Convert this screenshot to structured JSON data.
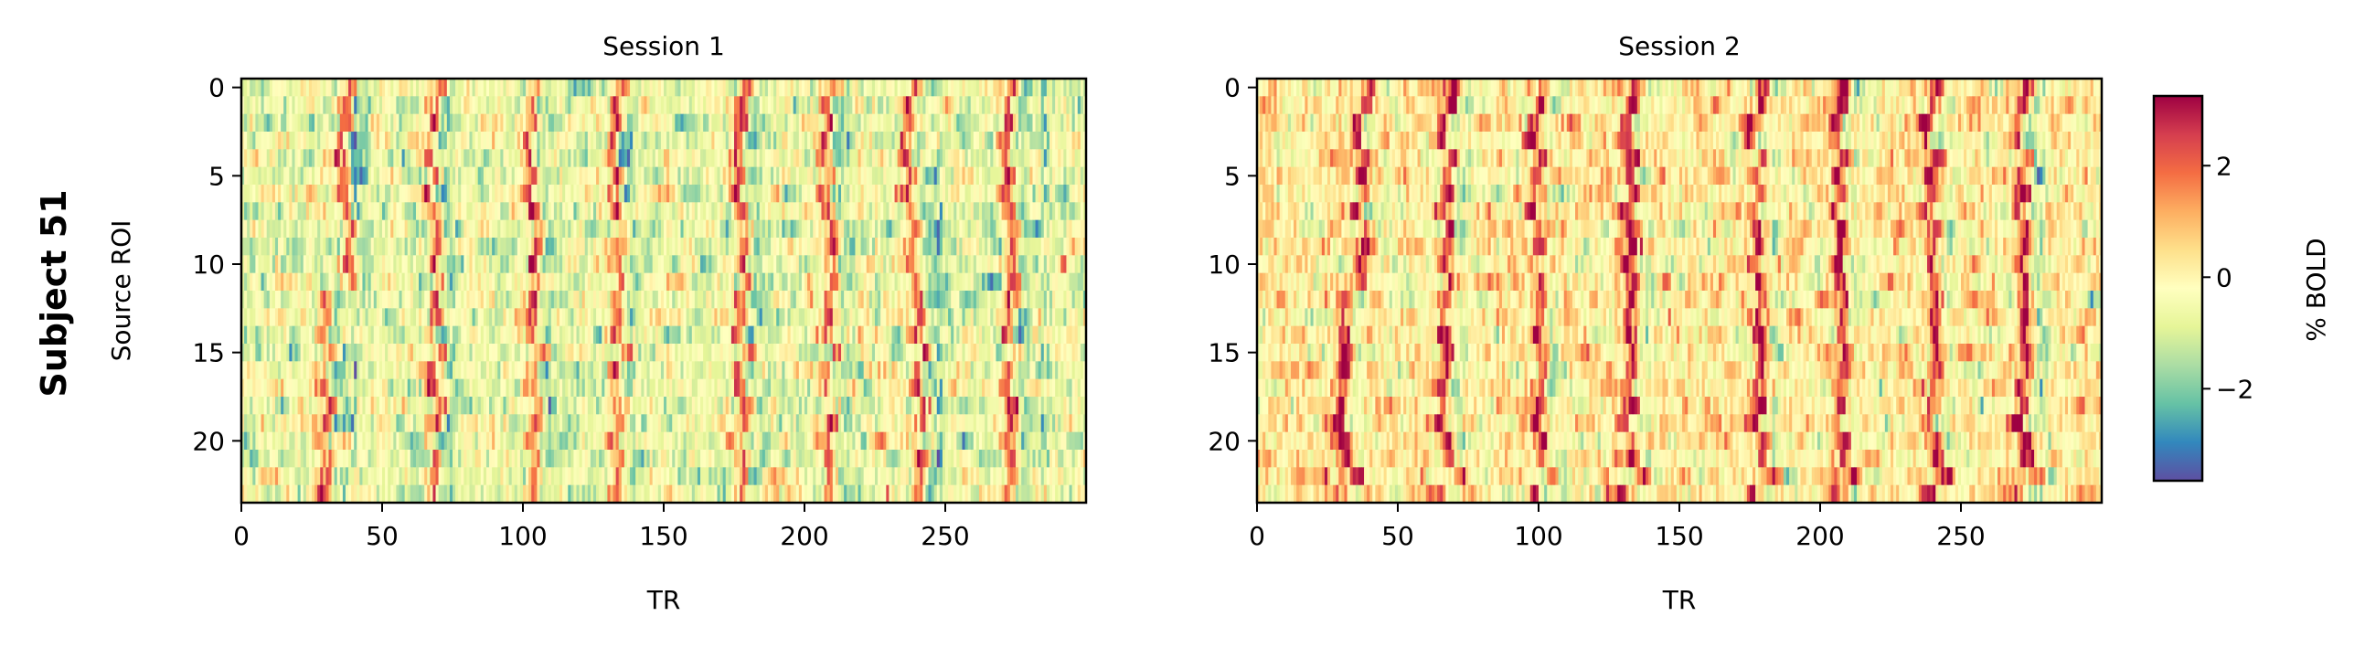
{
  "figure": {
    "row_label": "Subject 51"
  },
  "chart_data": [
    {
      "type": "heatmap",
      "title": "Session 1",
      "xlabel": "TR",
      "ylabel": "Source ROI",
      "n_rows": 24,
      "n_cols": 300,
      "xlim": [
        0,
        299
      ],
      "ylim": [
        23,
        0
      ],
      "xticks": [
        "0",
        "50",
        "100",
        "150",
        "200",
        "250"
      ],
      "yticks": [
        "0",
        "5",
        "10",
        "15",
        "20"
      ],
      "colormap": "Spectral_r",
      "baseline_level": -0.6,
      "response_peaks_tr_rows_0_11": [
        37,
        68,
        103,
        133,
        177,
        208,
        237,
        272
      ],
      "response_peaks_tr_rows_12_23": [
        29,
        68,
        103,
        133,
        177,
        208,
        240,
        272
      ],
      "notable_negative_tr": [
        40,
        247,
        285
      ]
    },
    {
      "type": "heatmap",
      "title": "Session 2",
      "xlabel": "TR",
      "ylabel": "",
      "n_rows": 24,
      "n_cols": 300,
      "xlim": [
        0,
        299
      ],
      "ylim": [
        23,
        0
      ],
      "xticks": [
        "0",
        "50",
        "100",
        "150",
        "200",
        "250"
      ],
      "yticks": [
        "0",
        "5",
        "10",
        "15",
        "20"
      ],
      "colormap": "Spectral_r",
      "baseline_level": 0.1,
      "response_peaks_tr_rows_0_11": [
        38,
        68,
        100,
        133,
        178,
        207,
        240,
        272
      ],
      "response_peaks_tr_rows_12_23": [
        30,
        66,
        100,
        132,
        178,
        207,
        240,
        272
      ],
      "notable_negative_tr": [
        278
      ]
    }
  ],
  "colorbar": {
    "label": "% BOLD",
    "vmin": -3.65,
    "vmax": 3.25,
    "ticks": [
      2,
      0,
      -2
    ],
    "tick_labels": [
      "2",
      "0",
      "−2"
    ],
    "colors": [
      "#5e4fa2",
      "#3288bd",
      "#66c2a5",
      "#abdda4",
      "#e6f598",
      "#ffffbf",
      "#fee08b",
      "#fdae61",
      "#f46d43",
      "#d53e4f",
      "#9e0142"
    ]
  }
}
